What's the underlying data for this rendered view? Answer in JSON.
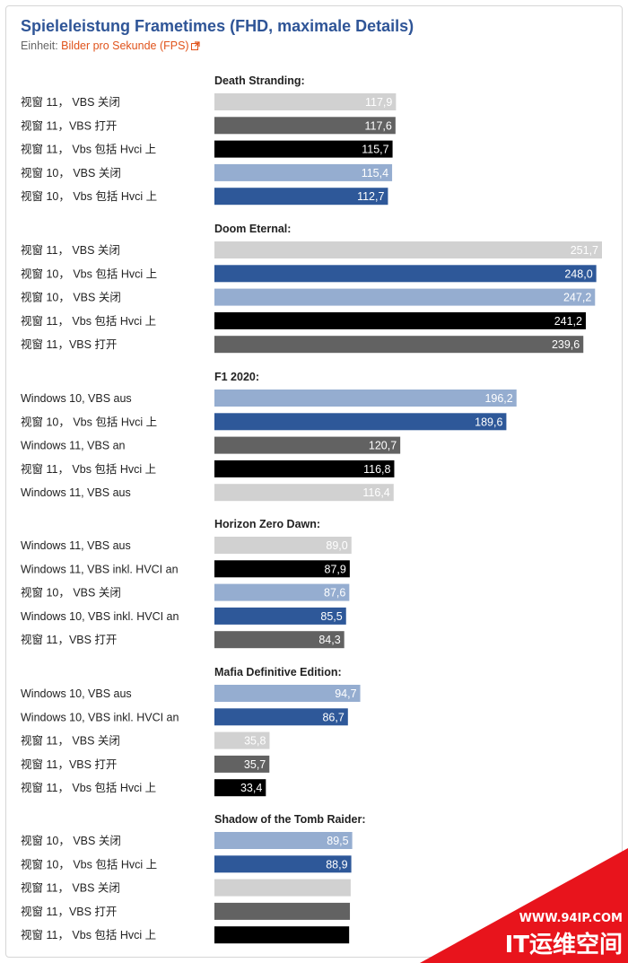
{
  "header": {
    "title": "Spieleleistung Frametimes (FHD, maximale Details)",
    "unit_prefix": "Einheit: ",
    "unit_link": "Bilder pro Sekunde (FPS)"
  },
  "colors": {
    "light_grey": "#d1d1d1",
    "dark_grey": "#626262",
    "black": "#000000",
    "light_blue": "#95add0",
    "dark_blue": "#2e5899",
    "title_blue": "#2f5597",
    "link_orange": "#e0531b"
  },
  "watermark": {
    "url": "WWW.94IP.COM",
    "brand": "IT运维空间"
  },
  "chart_data": {
    "type": "bar",
    "orientation": "horizontal",
    "xlim": [
      0,
      251.7
    ],
    "grid": false,
    "legend": "none",
    "groups": [
      {
        "category": "Death Stranding:",
        "bars": [
          {
            "label": "视窗 11， VBS 关闭",
            "value": 117.9,
            "display": "117,9",
            "color": "light_grey"
          },
          {
            "label": "视窗 11，VBS 打开",
            "value": 117.6,
            "display": "117,6",
            "color": "dark_grey"
          },
          {
            "label": "视窗 11， Vbs 包括 Hvci 上",
            "value": 115.7,
            "display": "115,7",
            "color": "black"
          },
          {
            "label": "视窗 10， VBS 关闭",
            "value": 115.4,
            "display": "115,4",
            "color": "light_blue"
          },
          {
            "label": "视窗 10， Vbs 包括 Hvci 上",
            "value": 112.7,
            "display": "112,7",
            "color": "dark_blue"
          }
        ]
      },
      {
        "category": "Doom Eternal:",
        "bars": [
          {
            "label": "视窗 11， VBS 关闭",
            "value": 251.7,
            "display": "251,7",
            "color": "light_grey"
          },
          {
            "label": "视窗 10， Vbs 包括 Hvci 上",
            "value": 248.0,
            "display": "248,0",
            "color": "dark_blue"
          },
          {
            "label": "视窗 10， VBS 关闭",
            "value": 247.2,
            "display": "247,2",
            "color": "light_blue"
          },
          {
            "label": "视窗 11， Vbs 包括 Hvci 上",
            "value": 241.2,
            "display": "241,2",
            "color": "black"
          },
          {
            "label": "视窗 11，VBS 打开",
            "value": 239.6,
            "display": "239,6",
            "color": "dark_grey"
          }
        ]
      },
      {
        "category": "F1 2020:",
        "bars": [
          {
            "label": "Windows 10, VBS aus",
            "value": 196.2,
            "display": "196,2",
            "color": "light_blue"
          },
          {
            "label": "视窗 10， Vbs 包括 Hvci 上",
            "value": 189.6,
            "display": "189,6",
            "color": "dark_blue"
          },
          {
            "label": "Windows 11, VBS an",
            "value": 120.7,
            "display": "120,7",
            "color": "dark_grey"
          },
          {
            "label": "视窗 11， Vbs 包括 Hvci 上",
            "value": 116.8,
            "display": "116,8",
            "color": "black"
          },
          {
            "label": "Windows 11, VBS aus",
            "value": 116.4,
            "display": "116,4",
            "color": "light_grey"
          }
        ]
      },
      {
        "category": "Horizon Zero Dawn:",
        "bars": [
          {
            "label": "Windows 11, VBS aus",
            "value": 89.0,
            "display": "89,0",
            "color": "light_grey"
          },
          {
            "label": "Windows 11, VBS inkl. HVCI an",
            "value": 87.9,
            "display": "87,9",
            "color": "black"
          },
          {
            "label": "视窗 10， VBS 关闭",
            "value": 87.6,
            "display": "87,6",
            "color": "light_blue"
          },
          {
            "label": "Windows 10, VBS inkl. HVCI an",
            "value": 85.5,
            "display": "85,5",
            "color": "dark_blue"
          },
          {
            "label": "视窗 11，VBS 打开",
            "value": 84.3,
            "display": "84,3",
            "color": "dark_grey"
          }
        ]
      },
      {
        "category": "Mafia Definitive Edition:",
        "bars": [
          {
            "label": "Windows 10, VBS aus",
            "value": 94.7,
            "display": "94,7",
            "color": "light_blue"
          },
          {
            "label": "Windows 10, VBS inkl. HVCI an",
            "value": 86.7,
            "display": "86,7",
            "color": "dark_blue"
          },
          {
            "label": "视窗 11， VBS 关闭",
            "value": 35.8,
            "display": "35,8",
            "color": "light_grey"
          },
          {
            "label": "视窗 11，VBS 打开",
            "value": 35.7,
            "display": "35,7",
            "color": "dark_grey"
          },
          {
            "label": "视窗 11， Vbs 包括 Hvci 上",
            "value": 33.4,
            "display": "33,4",
            "color": "black"
          }
        ]
      },
      {
        "category": "Shadow of the Tomb Raider:",
        "bars": [
          {
            "label": "视窗 10， VBS 关闭",
            "value": 89.5,
            "display": "89,5",
            "color": "light_blue"
          },
          {
            "label": "视窗 10， Vbs 包括 Hvci 上",
            "value": 88.9,
            "display": "88,9",
            "color": "dark_blue"
          },
          {
            "label": "视窗 11， VBS 关闭",
            "value": 88.5,
            "display": "",
            "color": "light_grey"
          },
          {
            "label": "视窗 11，VBS 打开",
            "value": 88.0,
            "display": "",
            "color": "dark_grey"
          },
          {
            "label": "视窗 11， Vbs 包括 Hvci 上",
            "value": 87.5,
            "display": "",
            "color": "black"
          }
        ]
      }
    ]
  }
}
